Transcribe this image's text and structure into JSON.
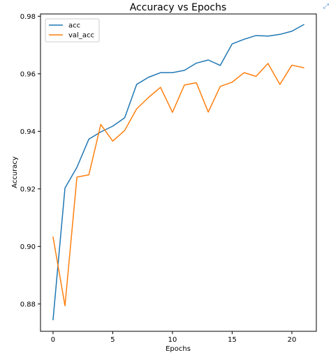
{
  "corner_icon": {
    "name": "expand-icon",
    "glyph": "⤢",
    "color": "#4a90d9"
  },
  "chart_data": {
    "type": "line",
    "title": "Accuracy vs Epochs",
    "xlabel": "Epochs",
    "ylabel": "Accuracy",
    "x": [
      0,
      1,
      2,
      3,
      4,
      5,
      6,
      7,
      8,
      9,
      10,
      11,
      12,
      13,
      14,
      15,
      16,
      17,
      18,
      19,
      20,
      21
    ],
    "xlim": [
      -1.05,
      22.05
    ],
    "ylim": [
      0.8705,
      0.9808
    ],
    "xticks": [
      0,
      5,
      10,
      15,
      20
    ],
    "xtick_labels": [
      "0",
      "5",
      "10",
      "15",
      "20"
    ],
    "yticks": [
      0.88,
      0.9,
      0.92,
      0.94,
      0.96,
      0.98
    ],
    "ytick_labels": [
      "0.88",
      "0.90",
      "0.92",
      "0.94",
      "0.96",
      "0.98"
    ],
    "grid": false,
    "legend_position": "top-left",
    "series": [
      {
        "name": "acc",
        "color": "#1f77b4",
        "values": [
          0.8745,
          0.9203,
          0.9275,
          0.9373,
          0.9398,
          0.9418,
          0.9447,
          0.9563,
          0.9588,
          0.9604,
          0.9604,
          0.9612,
          0.9637,
          0.9648,
          0.9629,
          0.9704,
          0.972,
          0.9733,
          0.9731,
          0.9737,
          0.9748,
          0.9771
        ]
      },
      {
        "name": "val_acc",
        "color": "#ff7f0e",
        "values": [
          0.9033,
          0.8794,
          0.9241,
          0.9249,
          0.9424,
          0.9366,
          0.9403,
          0.9478,
          0.9518,
          0.9553,
          0.9466,
          0.9561,
          0.9569,
          0.9467,
          0.9556,
          0.9571,
          0.9604,
          0.9591,
          0.9636,
          0.9563,
          0.963,
          0.9621
        ]
      }
    ]
  }
}
